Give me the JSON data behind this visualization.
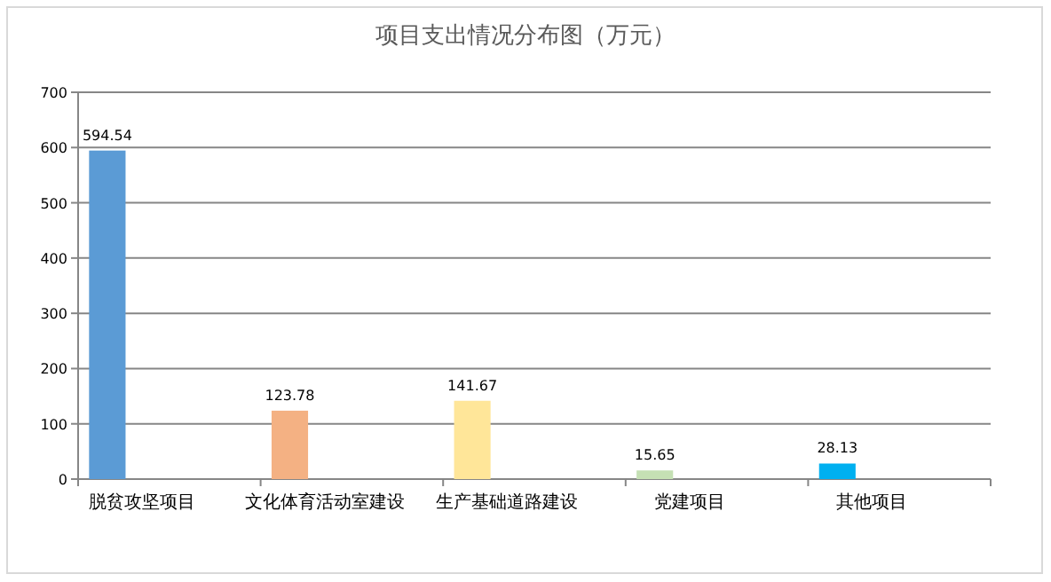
{
  "chart_data": {
    "type": "bar",
    "title": "项目支出情况分布图（万元）",
    "categories": [
      "脱贫攻坚项目",
      "文化体育活动室建设",
      "生产基础道路建设",
      "党建项目",
      "其他项目"
    ],
    "values": [
      594.54,
      123.78,
      141.67,
      15.65,
      28.13
    ],
    "colors": [
      "#5b9bd5",
      "#f4b183",
      "#ffe699",
      "#c5e0b4",
      "#00b0f0"
    ],
    "ylim": [
      0,
      700
    ],
    "yticks": [
      0,
      100,
      200,
      300,
      400,
      500,
      600,
      700
    ],
    "grid": "y",
    "data_labels": true
  }
}
